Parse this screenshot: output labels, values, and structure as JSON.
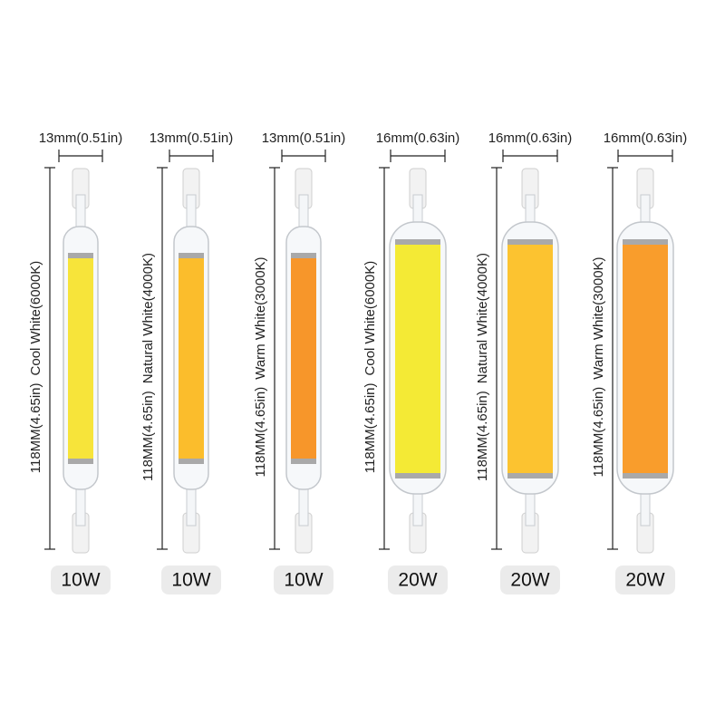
{
  "products": [
    {
      "width": "13mm(0.51in)",
      "length": "118MM(4.65in)",
      "light": "Cool White(6000K)",
      "power": "10W"
    },
    {
      "width": "13mm(0.51in)",
      "length": "118MM(4.65in)",
      "light": "Natural White(4000K)",
      "power": "10W"
    },
    {
      "width": "13mm(0.51in)",
      "length": "118MM(4.65in)",
      "light": "Warm White(3000K)",
      "power": "10W"
    },
    {
      "width": "16mm(0.63in)",
      "length": "118MM(4.65in)",
      "light": "Cool White(6000K)",
      "power": "20W"
    },
    {
      "width": "16mm(0.63in)",
      "length": "118MM(4.65in)",
      "light": "Natural White(4000K)",
      "power": "20W"
    },
    {
      "width": "16mm(0.63in)",
      "length": "118MM(4.65in)",
      "light": "Warm White(3000K)",
      "power": "20W"
    }
  ]
}
